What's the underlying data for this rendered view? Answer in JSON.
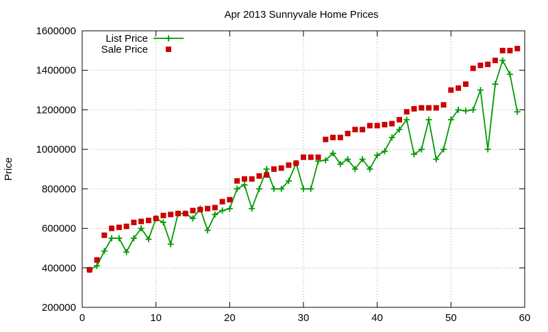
{
  "chart_data": {
    "type": "line",
    "title": "Apr 2013 Sunnyvale Home Prices",
    "xlabel": "",
    "ylabel": "Price",
    "xlim": [
      0,
      60
    ],
    "ylim": [
      200000,
      1600000
    ],
    "xticks": [
      0,
      10,
      20,
      30,
      40,
      50,
      60
    ],
    "yticks": [
      200000,
      400000,
      600000,
      800000,
      1000000,
      1200000,
      1400000,
      1600000
    ],
    "grid": true,
    "legend": "top-left",
    "series": [
      {
        "name": "List Price",
        "style": "line-with-plus-markers",
        "color": "#009900",
        "x": [
          1,
          2,
          3,
          4,
          5,
          6,
          7,
          8,
          9,
          10,
          11,
          12,
          13,
          14,
          15,
          16,
          17,
          18,
          19,
          20,
          21,
          22,
          23,
          24,
          25,
          26,
          27,
          28,
          29,
          30,
          31,
          32,
          33,
          34,
          35,
          36,
          37,
          38,
          39,
          40,
          41,
          42,
          43,
          44,
          45,
          46,
          47,
          48,
          49,
          50,
          51,
          52,
          53,
          54,
          55,
          56,
          57,
          58,
          59
        ],
        "y": [
          390000,
          410000,
          485000,
          550000,
          550000,
          480000,
          550000,
          600000,
          545000,
          650000,
          630000,
          520000,
          675000,
          675000,
          650000,
          700000,
          590000,
          670000,
          690000,
          700000,
          800000,
          820000,
          700000,
          800000,
          900000,
          800000,
          800000,
          840000,
          930000,
          800000,
          800000,
          940000,
          945000,
          980000,
          925000,
          950000,
          900000,
          950000,
          900000,
          970000,
          990000,
          1060000,
          1100000,
          1150000,
          975000,
          1000000,
          1150000,
          950000,
          1000000,
          1150000,
          1200000,
          1195000,
          1200000,
          1300000,
          1000000,
          1330000,
          1450000,
          1380000,
          1190000
        ]
      },
      {
        "name": "Sale Price",
        "style": "square-markers",
        "color": "#cc0000",
        "x": [
          1,
          2,
          3,
          4,
          5,
          6,
          7,
          8,
          9,
          10,
          11,
          12,
          13,
          14,
          15,
          16,
          17,
          18,
          19,
          20,
          21,
          22,
          23,
          24,
          25,
          26,
          27,
          28,
          29,
          30,
          31,
          32,
          33,
          34,
          35,
          36,
          37,
          38,
          39,
          40,
          41,
          42,
          43,
          44,
          45,
          46,
          47,
          48,
          49,
          50,
          51,
          52,
          53,
          54,
          55,
          56,
          57,
          58,
          59
        ],
        "y": [
          390000,
          440000,
          565000,
          600000,
          605000,
          610000,
          630000,
          635000,
          640000,
          650000,
          665000,
          670000,
          675000,
          675000,
          690000,
          695000,
          700000,
          705000,
          735000,
          745000,
          840000,
          850000,
          850000,
          865000,
          870000,
          900000,
          905000,
          920000,
          930000,
          960000,
          960000,
          960000,
          1050000,
          1060000,
          1060000,
          1080000,
          1100000,
          1100000,
          1120000,
          1120000,
          1125000,
          1130000,
          1150000,
          1190000,
          1205000,
          1210000,
          1210000,
          1210000,
          1225000,
          1300000,
          1310000,
          1330000,
          1410000,
          1425000,
          1430000,
          1450000,
          1500000,
          1500000,
          1510000
        ]
      }
    ]
  }
}
